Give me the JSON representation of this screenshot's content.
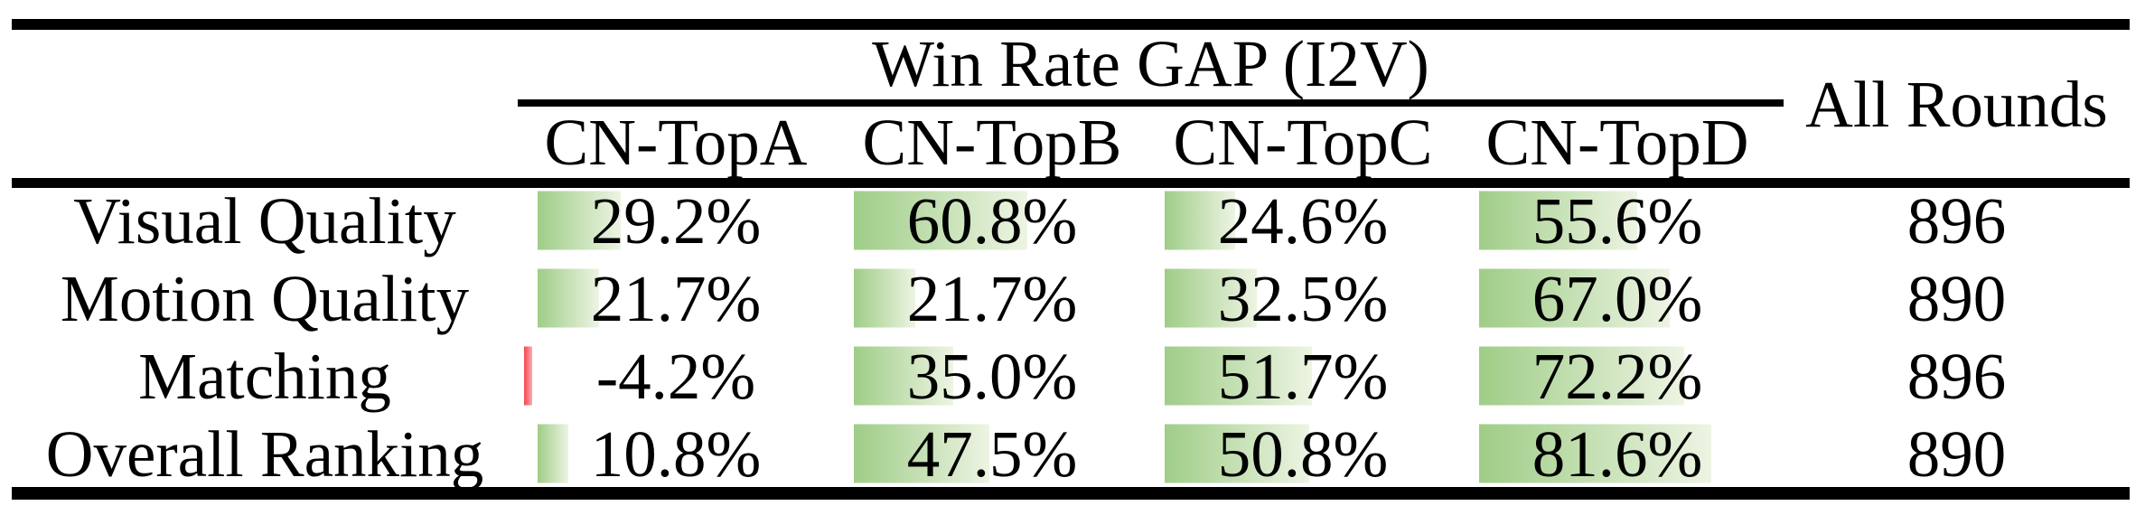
{
  "table": {
    "title": "Win Rate GAP (I2V)",
    "all_rounds_header": "All Rounds",
    "columns": [
      "CN-TopA",
      "CN-TopB",
      "CN-TopC",
      "CN-TopD"
    ],
    "rows": [
      {
        "label": "Visual Quality",
        "values": [
          "29.2%",
          "60.8%",
          "24.6%",
          "55.6%"
        ],
        "numeric": [
          29.2,
          60.8,
          24.6,
          55.6
        ],
        "all_rounds": "896"
      },
      {
        "label": "Motion Quality",
        "values": [
          "21.7%",
          "21.7%",
          "32.5%",
          "67.0%"
        ],
        "numeric": [
          21.7,
          21.7,
          32.5,
          67.0
        ],
        "all_rounds": "890"
      },
      {
        "label": "Matching",
        "values": [
          "-4.2%",
          "35.0%",
          "51.7%",
          "72.2%"
        ],
        "numeric": [
          -4.2,
          35.0,
          51.7,
          72.2
        ],
        "all_rounds": "896"
      },
      {
        "label": "Overall Ranking",
        "values": [
          "10.8%",
          "47.5%",
          "50.8%",
          "81.6%"
        ],
        "numeric": [
          10.8,
          47.5,
          50.8,
          81.6
        ],
        "all_rounds": "890"
      }
    ],
    "colors": {
      "background": "#ffffff",
      "text": "#000000",
      "rule": "#000000",
      "positive_bar_start": "#9fcd87",
      "positive_bar_end": "#edf4e3",
      "negative_bar_start": "#f4464f",
      "negative_bar_end": "#fcabb0"
    }
  },
  "chart_data": {
    "type": "table",
    "title": "Win Rate GAP (I2V)",
    "categories": [
      "Visual Quality",
      "Motion Quality",
      "Matching",
      "Overall Ranking"
    ],
    "series": [
      {
        "name": "CN-TopA",
        "values": [
          29.2,
          21.7,
          -4.2,
          10.8
        ]
      },
      {
        "name": "CN-TopB",
        "values": [
          60.8,
          21.7,
          35.0,
          47.5
        ]
      },
      {
        "name": "CN-TopC",
        "values": [
          24.6,
          32.5,
          51.7,
          50.8
        ]
      },
      {
        "name": "CN-TopD",
        "values": [
          55.6,
          67.0,
          72.2,
          81.6
        ]
      }
    ],
    "extra_column": {
      "name": "All Rounds",
      "values": [
        896,
        890,
        896,
        890
      ]
    },
    "value_unit": "%",
    "bar_style": "in-cell gradient data bars, green positive, red negative"
  }
}
